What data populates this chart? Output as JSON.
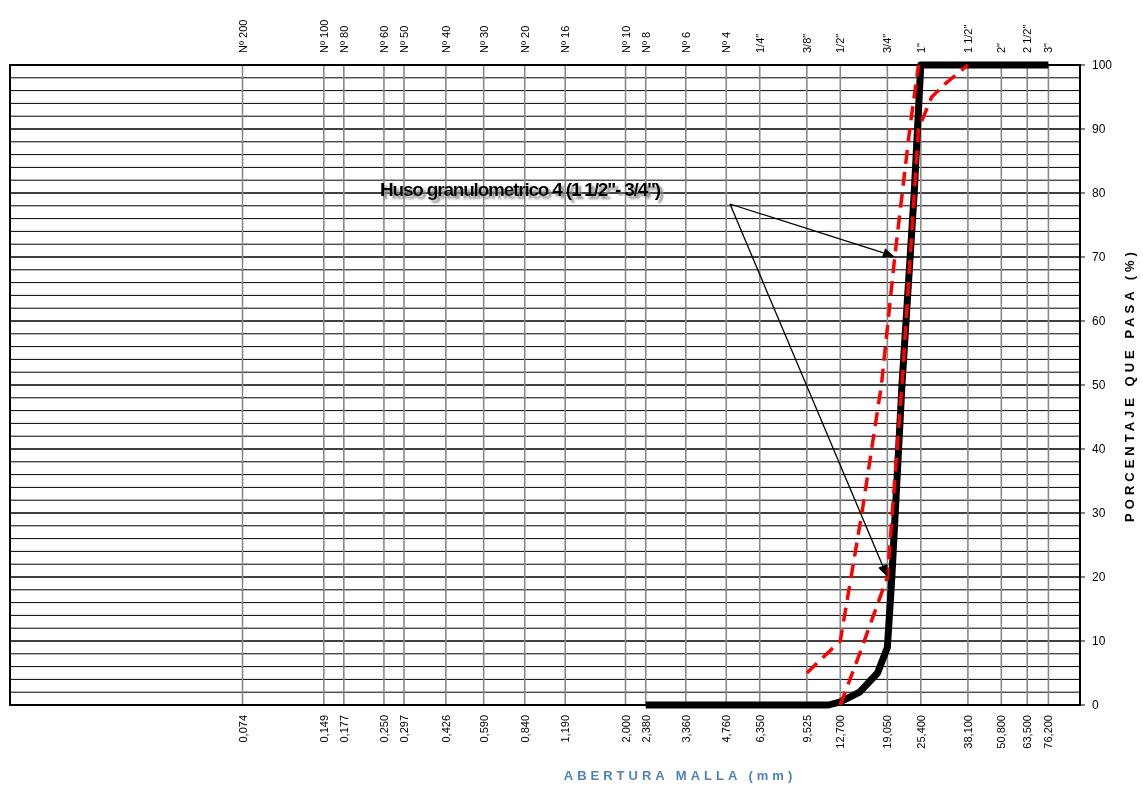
{
  "chart_data": {
    "type": "line",
    "xlabel": "ABERTURA MALLA (mm)",
    "ylabel": "PORCENTAJE QUE PASA (%)",
    "log": "x",
    "grid": true,
    "marker": "none",
    "xlim": [
      0.01,
      100
    ],
    "ylim": [
      0,
      100
    ],
    "xticks": [
      {
        "value": 0.074,
        "label": "0,074"
      },
      {
        "value": 0.149,
        "label": "0,149"
      },
      {
        "value": 0.177,
        "label": "0,177"
      },
      {
        "value": 0.25,
        "label": "0,250"
      },
      {
        "value": 0.297,
        "label": "0,297"
      },
      {
        "value": 0.426,
        "label": "0,426"
      },
      {
        "value": 0.59,
        "label": "0,590"
      },
      {
        "value": 0.84,
        "label": "0,840"
      },
      {
        "value": 1.19,
        "label": "1,190"
      },
      {
        "value": 2.0,
        "label": "2,000"
      },
      {
        "value": 2.38,
        "label": "2,380"
      },
      {
        "value": 3.36,
        "label": "3,360"
      },
      {
        "value": 4.76,
        "label": "4,760"
      },
      {
        "value": 6.35,
        "label": "6,350"
      },
      {
        "value": 9.525,
        "label": "9,525"
      },
      {
        "value": 12.7,
        "label": "12,700"
      },
      {
        "value": 19.05,
        "label": "19,050"
      },
      {
        "value": 25.4,
        "label": "25,400"
      },
      {
        "value": 38.1,
        "label": "38,100"
      },
      {
        "value": 50.8,
        "label": "50,800"
      },
      {
        "value": 63.5,
        "label": "63,500"
      },
      {
        "value": 76.2,
        "label": "76,200"
      }
    ],
    "yticks": [
      0,
      {
        "value": 2,
        "label": null
      },
      {
        "value": 4,
        "label": null
      },
      {
        "value": 6,
        "label": null
      },
      {
        "value": 8,
        "label": null
      },
      10,
      {
        "value": 12,
        "label": null
      },
      {
        "value": 14,
        "label": null
      },
      {
        "value": 16,
        "label": null
      },
      {
        "value": 18,
        "label": null
      },
      20,
      {
        "value": 22,
        "label": null
      },
      {
        "value": 24,
        "label": null
      },
      {
        "value": 26,
        "label": null
      },
      {
        "value": 28,
        "label": null
      },
      30,
      {
        "value": 32,
        "label": null
      },
      {
        "value": 34,
        "label": null
      },
      {
        "value": 36,
        "label": null
      },
      {
        "value": 38,
        "label": null
      },
      40,
      {
        "value": 42,
        "label": null
      },
      {
        "value": 44,
        "label": null
      },
      {
        "value": 46,
        "label": null
      },
      {
        "value": 48,
        "label": null
      },
      50,
      {
        "value": 52,
        "label": null
      },
      {
        "value": 54,
        "label": null
      },
      {
        "value": 56,
        "label": null
      },
      {
        "value": 58,
        "label": null
      },
      60,
      {
        "value": 62,
        "label": null
      },
      {
        "value": 64,
        "label": null
      },
      {
        "value": 66,
        "label": null
      },
      {
        "value": 68,
        "label": null
      },
      70,
      {
        "value": 72,
        "label": null
      },
      {
        "value": 74,
        "label": null
      },
      {
        "value": 76,
        "label": null
      },
      {
        "value": 78,
        "label": null
      },
      80,
      {
        "value": 82,
        "label": null
      },
      {
        "value": 84,
        "label": null
      },
      {
        "value": 86,
        "label": null
      },
      {
        "value": 88,
        "label": null
      },
      90,
      {
        "value": 92,
        "label": null
      },
      {
        "value": 94,
        "label": null
      },
      {
        "value": 96,
        "label": null
      },
      {
        "value": 98,
        "label": null
      },
      100
    ],
    "series": [
      {
        "color": "#000000",
        "line_style": "solid",
        "x": [
          2.38,
          9.525,
          11.5,
          12.7,
          15,
          17.5,
          19.05,
          19.8,
          21.6,
          24.0,
          25.4,
          38.1,
          50.8,
          63.5,
          76.2
        ],
        "values": [
          0,
          0,
          0,
          0.5,
          2,
          5,
          9,
          20,
          50,
          80,
          100,
          100,
          100,
          100,
          100
        ]
      },
      {
        "color": "#ff0000",
        "line_style": "dashed",
        "x": [
          9.525,
          12.7,
          15.3,
          18.1,
          20.3,
          23.1,
          24.9
        ],
        "values": [
          5,
          10,
          30,
          50,
          70,
          90,
          100
        ]
      },
      {
        "color": "#ff0000",
        "line_style": "dashed",
        "x": [
          12.7,
          15.0,
          19.05,
          21.6,
          24.9,
          27.9,
          31.2,
          38.1
        ],
        "values": [
          0,
          8,
          20,
          50,
          90,
          95,
          97,
          100
        ]
      }
    ],
    "annotations": [
      "Huso granulometrico 4 (1 1/2\"- 3/4\")",
      "Nº 200",
      "Nº 100",
      "Nº 80",
      "Nº 60",
      "Nº 50",
      "Nº 40",
      "Nº 30",
      "Nº 20",
      "Nº 16",
      "Nº 10",
      "Nº 8",
      "Nº 6",
      "Nº 4",
      "1/4\"",
      "3/8\"",
      "1/2\"",
      "3/4\"",
      "1\"",
      "1 1/2\"",
      "2\"",
      "2 1/2\"",
      "3\""
    ]
  }
}
